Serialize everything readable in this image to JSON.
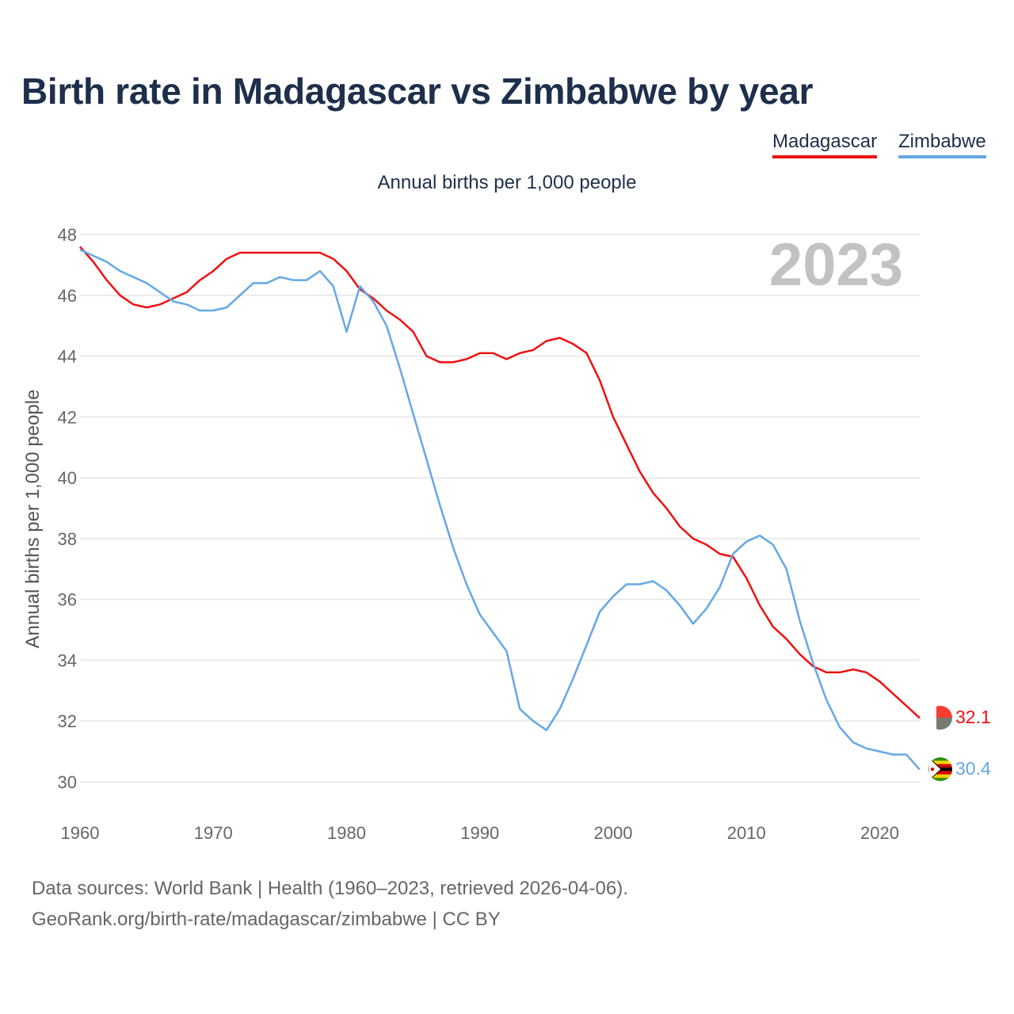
{
  "title": "Birth rate in Madagascar vs Zimbabwe by year",
  "subtitle": "Annual births per 1,000 people",
  "legend": [
    {
      "name": "Madagascar",
      "color": "#ee1111"
    },
    {
      "name": "Zimbabwe",
      "color": "#64a8e6"
    }
  ],
  "sources": {
    "line1": "Data sources: World Bank | Health (1960–2023, retrieved 2026-04-06).",
    "line2": "GeoRank.org/birth-rate/madagascar/zimbabwe | CC BY"
  },
  "chart_data": {
    "type": "line",
    "title": "Birth rate in Madagascar vs Zimbabwe by year",
    "subtitle": "Annual births per 1,000 people",
    "xlabel": "",
    "ylabel": "Annual births per 1,000 people",
    "year_watermark": "2023",
    "xlim": [
      1960,
      2023
    ],
    "ylim": [
      30,
      48
    ],
    "xticks": [
      1960,
      1970,
      1980,
      1990,
      2000,
      2010,
      2020
    ],
    "yticks": [
      30,
      32,
      34,
      36,
      38,
      40,
      42,
      44,
      46,
      48
    ],
    "grid": true,
    "legend_position": "top-right",
    "x": [
      1960,
      1961,
      1962,
      1963,
      1964,
      1965,
      1966,
      1967,
      1968,
      1969,
      1970,
      1971,
      1972,
      1973,
      1974,
      1975,
      1976,
      1977,
      1978,
      1979,
      1980,
      1981,
      1982,
      1983,
      1984,
      1985,
      1986,
      1987,
      1988,
      1989,
      1990,
      1991,
      1992,
      1993,
      1994,
      1995,
      1996,
      1997,
      1998,
      1999,
      2000,
      2001,
      2002,
      2003,
      2004,
      2005,
      2006,
      2007,
      2008,
      2009,
      2010,
      2011,
      2012,
      2013,
      2014,
      2015,
      2016,
      2017,
      2018,
      2019,
      2020,
      2021,
      2022,
      2023
    ],
    "series": [
      {
        "name": "Madagascar",
        "color": "#ee1111",
        "end_label": "32.1",
        "values": [
          47.6,
          47.1,
          46.5,
          46.0,
          45.7,
          45.6,
          45.7,
          45.9,
          46.1,
          46.5,
          46.8,
          47.2,
          47.4,
          47.4,
          47.4,
          47.4,
          47.4,
          47.4,
          47.4,
          47.2,
          46.8,
          46.2,
          45.9,
          45.5,
          45.2,
          44.8,
          44.0,
          43.8,
          43.8,
          43.9,
          44.1,
          44.1,
          43.9,
          44.1,
          44.2,
          44.5,
          44.6,
          44.4,
          44.1,
          43.2,
          42.0,
          41.1,
          40.2,
          39.5,
          39.0,
          38.4,
          38.0,
          37.8,
          37.5,
          37.4,
          36.7,
          35.8,
          35.1,
          34.7,
          34.2,
          33.8,
          33.6,
          33.6,
          33.7,
          33.6,
          33.3,
          32.9,
          32.5,
          32.1
        ]
      },
      {
        "name": "Zimbabwe",
        "color": "#64a8e6",
        "end_label": "30.4",
        "values": [
          47.5,
          47.3,
          47.1,
          46.8,
          46.6,
          46.4,
          46.1,
          45.8,
          45.7,
          45.5,
          45.5,
          45.6,
          46.0,
          46.4,
          46.4,
          46.6,
          46.5,
          46.5,
          46.8,
          46.3,
          44.8,
          46.3,
          45.8,
          45.0,
          43.6,
          42.1,
          40.6,
          39.1,
          37.7,
          36.5,
          35.5,
          34.9,
          34.3,
          32.4,
          32.0,
          31.7,
          32.4,
          33.4,
          34.5,
          35.6,
          36.1,
          36.5,
          36.5,
          36.6,
          36.3,
          35.8,
          35.2,
          35.7,
          36.4,
          37.5,
          37.9,
          38.1,
          37.8,
          37.0,
          35.3,
          33.9,
          32.7,
          31.8,
          31.3,
          31.1,
          31.0,
          30.9,
          30.9,
          30.4
        ]
      }
    ]
  }
}
